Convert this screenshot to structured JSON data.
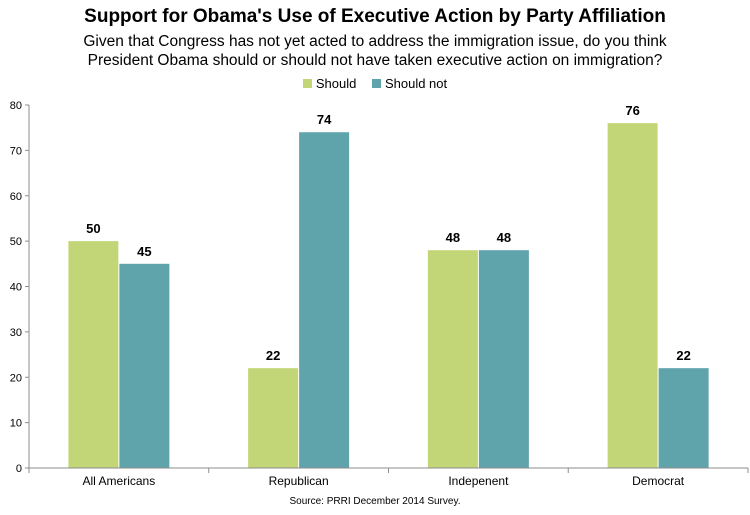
{
  "header": {
    "title": "Support for Obama's Use of Executive Action by Party Affiliation",
    "subtitle_line1": "Given that Congress has not yet acted to address the immigration issue, do you think",
    "subtitle_line2": "President Obama should or should not have taken executive action on immigration?"
  },
  "legend": {
    "placement": "top-center",
    "items": [
      "Should",
      "Should not"
    ]
  },
  "colors": {
    "should": "#c3d677",
    "should_not": "#5fa3ab",
    "axis": "#8c8c8c"
  },
  "source": "Source: PRRI December 2014 Survey.",
  "chart_data": {
    "type": "bar",
    "categories": [
      "All Americans",
      "Republican",
      "Indepenent",
      "Democrat"
    ],
    "series": [
      {
        "name": "Should",
        "values": [
          50,
          22,
          48,
          76
        ],
        "labels": [
          "50",
          "22",
          "48",
          "76"
        ]
      },
      {
        "name": "Should not",
        "values": [
          45,
          74,
          48,
          22
        ],
        "labels": [
          "45",
          "74",
          "48",
          "22"
        ]
      }
    ],
    "ylim": [
      0,
      80
    ],
    "yticks": [
      "0",
      "10",
      "20",
      "30",
      "40",
      "50",
      "60",
      "70",
      "80"
    ],
    "grid": false
  }
}
